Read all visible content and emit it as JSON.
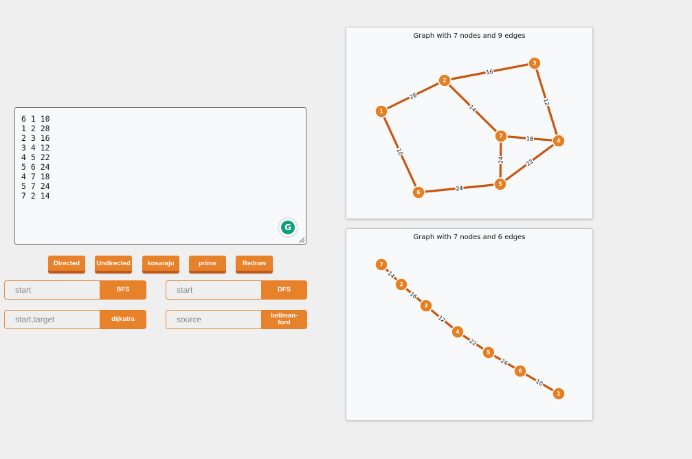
{
  "editor": {
    "lines": [
      "6 1 10",
      "1 2 28",
      "2 3 16",
      "3 4 12",
      "4 5 22",
      "5 6 24",
      "4 7 18",
      "5 7 24",
      "7 2 14"
    ]
  },
  "toolbar": {
    "directed": "Directed",
    "undirected": "Undirected",
    "kosaraju": "kosaraju",
    "prime": "prime",
    "redraw": "Redraw"
  },
  "algorithms": {
    "bfs": {
      "placeholder": "start",
      "button": "BFS"
    },
    "dfs": {
      "placeholder": "start",
      "button": "DFS"
    },
    "dijkstra": {
      "placeholder": "start,target",
      "button": "dijkstra"
    },
    "bellman": {
      "placeholder": "source",
      "button": "bellman-ford"
    }
  },
  "graph1": {
    "title": "Graph with 7 nodes and 9 edges",
    "nodes": [
      "1",
      "2",
      "3",
      "4",
      "5",
      "6",
      "7"
    ],
    "edges": [
      {
        "from": "6",
        "to": "1",
        "weight": "10"
      },
      {
        "from": "1",
        "to": "2",
        "weight": "28"
      },
      {
        "from": "2",
        "to": "3",
        "weight": "16"
      },
      {
        "from": "3",
        "to": "4",
        "weight": "12"
      },
      {
        "from": "4",
        "to": "5",
        "weight": "22"
      },
      {
        "from": "5",
        "to": "6",
        "weight": "24"
      },
      {
        "from": "4",
        "to": "7",
        "weight": "18"
      },
      {
        "from": "5",
        "to": "7",
        "weight": "24"
      },
      {
        "from": "7",
        "to": "2",
        "weight": "14"
      }
    ]
  },
  "graph2": {
    "title": "Graph with 7 nodes and 6 edges",
    "nodes": [
      "7",
      "2",
      "3",
      "4",
      "5",
      "6",
      "1"
    ],
    "edges": [
      {
        "from": "7",
        "to": "2",
        "weight": "14"
      },
      {
        "from": "2",
        "to": "3",
        "weight": "16"
      },
      {
        "from": "3",
        "to": "4",
        "weight": "12"
      },
      {
        "from": "4",
        "to": "5",
        "weight": "22"
      },
      {
        "from": "5",
        "to": "6",
        "weight": "24"
      },
      {
        "from": "6",
        "to": "1",
        "weight": "10"
      }
    ]
  },
  "colors": {
    "accent": "#e7812a",
    "edge": "#c9550f",
    "node": "#e67e22"
  }
}
